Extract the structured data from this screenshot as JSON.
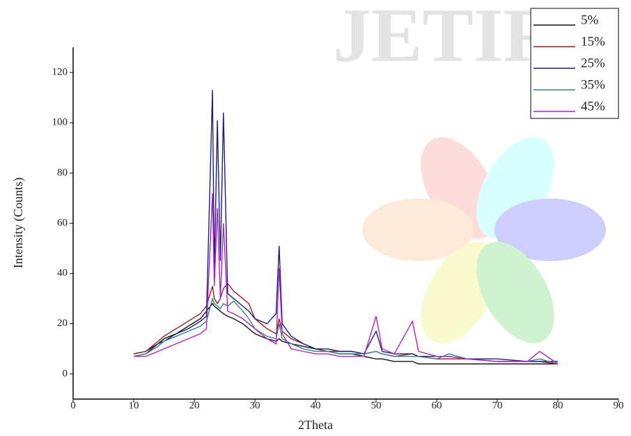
{
  "chart_data": {
    "type": "line",
    "watermark": "JETIR",
    "xlabel": "2Theta",
    "ylabel": "Intensity (Counts)",
    "x": [
      10,
      12,
      14,
      15,
      17,
      19,
      21,
      22,
      23,
      23.3,
      23.8,
      24.3,
      24.8,
      25.5,
      26.5,
      28,
      29,
      30,
      32,
      33.5,
      34,
      34.5,
      36,
      38,
      40,
      42,
      44,
      46,
      48,
      50,
      51,
      53,
      56,
      57,
      60,
      62,
      65,
      70,
      75,
      77,
      80
    ],
    "series": [
      {
        "name": "5%",
        "color": "#111111",
        "values": [
          8,
          9,
          12,
          14,
          16,
          19,
          22,
          25,
          28,
          27,
          26,
          25,
          24,
          23,
          22,
          20,
          18,
          16,
          14,
          13,
          14,
          13,
          12,
          11,
          10,
          9,
          8,
          8,
          7,
          6,
          6,
          5,
          5,
          4,
          4,
          4,
          4,
          4,
          4,
          4,
          4
        ]
      },
      {
        "name": "15%",
        "color": "#9b1c1c",
        "values": [
          8,
          9,
          13,
          15,
          18,
          21,
          24,
          27,
          35,
          30,
          28,
          30,
          34,
          36,
          33,
          30,
          28,
          22,
          18,
          16,
          22,
          17,
          14,
          12,
          10,
          9,
          9,
          9,
          8,
          9,
          8,
          7,
          8,
          7,
          6,
          6,
          6,
          5,
          5,
          5,
          4
        ]
      },
      {
        "name": "25%",
        "color": "#1c1c80",
        "values": [
          7,
          8,
          12,
          13,
          16,
          18,
          21,
          23,
          113,
          40,
          101,
          45,
          104,
          32,
          30,
          27,
          25,
          22,
          20,
          24,
          51,
          20,
          15,
          12,
          10,
          10,
          9,
          9,
          8,
          17,
          9,
          8,
          8,
          7,
          7,
          7,
          6,
          6,
          5,
          5,
          5
        ]
      },
      {
        "name": "35%",
        "color": "#2e8585",
        "values": [
          7,
          8,
          11,
          13,
          15,
          17,
          19,
          21,
          30,
          28,
          27,
          26,
          28,
          27,
          29,
          25,
          22,
          18,
          15,
          14,
          20,
          14,
          12,
          10,
          9,
          9,
          8,
          8,
          8,
          9,
          8,
          7,
          7,
          7,
          6,
          8,
          6,
          5,
          5,
          6,
          4
        ]
      },
      {
        "name": "45%",
        "color": "#b020c8",
        "values": [
          7,
          7,
          9,
          10,
          12,
          14,
          16,
          18,
          72,
          35,
          66,
          30,
          60,
          25,
          24,
          22,
          20,
          18,
          14,
          12,
          42,
          16,
          10,
          9,
          8,
          8,
          7,
          7,
          7,
          23,
          10,
          8,
          21,
          9,
          7,
          7,
          6,
          5,
          5,
          9,
          4
        ]
      }
    ],
    "xlim": [
      0,
      90
    ],
    "xticks": [
      0,
      10,
      20,
      30,
      40,
      50,
      60,
      70,
      80,
      90
    ],
    "ylim": [
      -10,
      130
    ],
    "yticks": [
      0,
      20,
      40,
      60,
      80,
      100,
      120
    ],
    "legend": "top-right"
  }
}
